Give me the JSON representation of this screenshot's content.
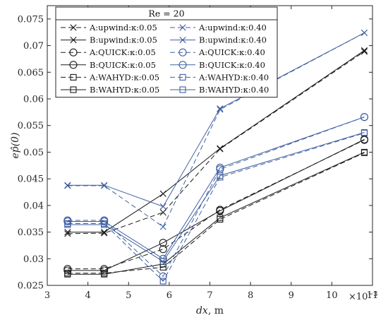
{
  "chart_data": {
    "type": "line",
    "legend_title": "Re = 20",
    "xlabel_var": "dx",
    "xlabel_unit": ", m",
    "ylabel": "ep̂(0)",
    "x_exponent_label": "×10",
    "x_exponent_power": "−3",
    "xlim": [
      3,
      11
    ],
    "ylim": [
      0.025,
      0.0775
    ],
    "x_ticks": [
      3,
      4,
      5,
      6,
      7,
      8,
      9,
      10,
      11
    ],
    "x_tick_labels": [
      "3",
      "4",
      "5",
      "6",
      "7",
      "8",
      "9",
      "10",
      "11"
    ],
    "y_ticks": [
      0.025,
      0.03,
      0.035,
      0.04,
      0.045,
      0.05,
      0.055,
      0.06,
      0.065,
      0.07,
      0.075
    ],
    "y_tick_labels": [
      "0.025",
      "0.03",
      "0.035",
      "0.04",
      "0.045",
      "0.05",
      "0.055",
      "0.06",
      "0.065",
      "0.07",
      "0.075"
    ],
    "x": [
      3.5,
      4.4,
      5.85,
      7.25,
      10.8
    ],
    "colors": {
      "black": "#1a1a1a",
      "blue": "#3f5fa0"
    },
    "series": [
      {
        "name": "A:upwind:κ:0.05",
        "color": "black",
        "dash": true,
        "marker": "x",
        "values": [
          0.0347,
          0.0348,
          0.0387,
          0.0506,
          0.0689
        ]
      },
      {
        "name": "B:upwind:κ:0.05",
        "color": "black",
        "dash": false,
        "marker": "x",
        "values": [
          0.035,
          0.035,
          0.0422,
          0.0507,
          0.0691
        ]
      },
      {
        "name": "A:QUICK:κ:0.05",
        "color": "black",
        "dash": true,
        "marker": "circle",
        "values": [
          0.0281,
          0.0281,
          0.0318,
          0.0392,
          0.0523
        ]
      },
      {
        "name": "B:QUICK:κ:0.05",
        "color": "black",
        "dash": false,
        "marker": "circle",
        "values": [
          0.0278,
          0.0278,
          0.033,
          0.039,
          0.0524
        ]
      },
      {
        "name": "A:WAHYD:κ:0.05",
        "color": "black",
        "dash": true,
        "marker": "square",
        "values": [
          0.0273,
          0.0273,
          0.0284,
          0.0374,
          0.0499
        ]
      },
      {
        "name": "B:WAHYD:κ:0.05",
        "color": "black",
        "dash": false,
        "marker": "square",
        "values": [
          0.0271,
          0.0271,
          0.029,
          0.0377,
          0.05
        ]
      },
      {
        "name": "A:upwind:κ:0.40",
        "color": "blue",
        "dash": true,
        "marker": "x",
        "values": [
          0.0437,
          0.0437,
          0.036,
          0.058,
          0.0724
        ]
      },
      {
        "name": "B:upwind:κ:0.40",
        "color": "blue",
        "dash": false,
        "marker": "x",
        "values": [
          0.0438,
          0.0438,
          0.0398,
          0.0582,
          0.0724
        ]
      },
      {
        "name": "A:QUICK:κ:0.40",
        "color": "blue",
        "dash": true,
        "marker": "circle",
        "values": [
          0.0372,
          0.0372,
          0.0267,
          0.0468,
          0.0566
        ]
      },
      {
        "name": "B:QUICK:κ:0.40",
        "color": "blue",
        "dash": false,
        "marker": "circle",
        "values": [
          0.037,
          0.037,
          0.03,
          0.0471,
          0.0566
        ]
      },
      {
        "name": "A:WAHYD:κ:0.40",
        "color": "blue",
        "dash": true,
        "marker": "square",
        "values": [
          0.0366,
          0.0366,
          0.0258,
          0.0453,
          0.0536
        ]
      },
      {
        "name": "B:WAHYD:κ:0.40",
        "color": "blue",
        "dash": false,
        "marker": "square",
        "values": [
          0.0364,
          0.0364,
          0.0295,
          0.0456,
          0.0537
        ]
      }
    ]
  }
}
